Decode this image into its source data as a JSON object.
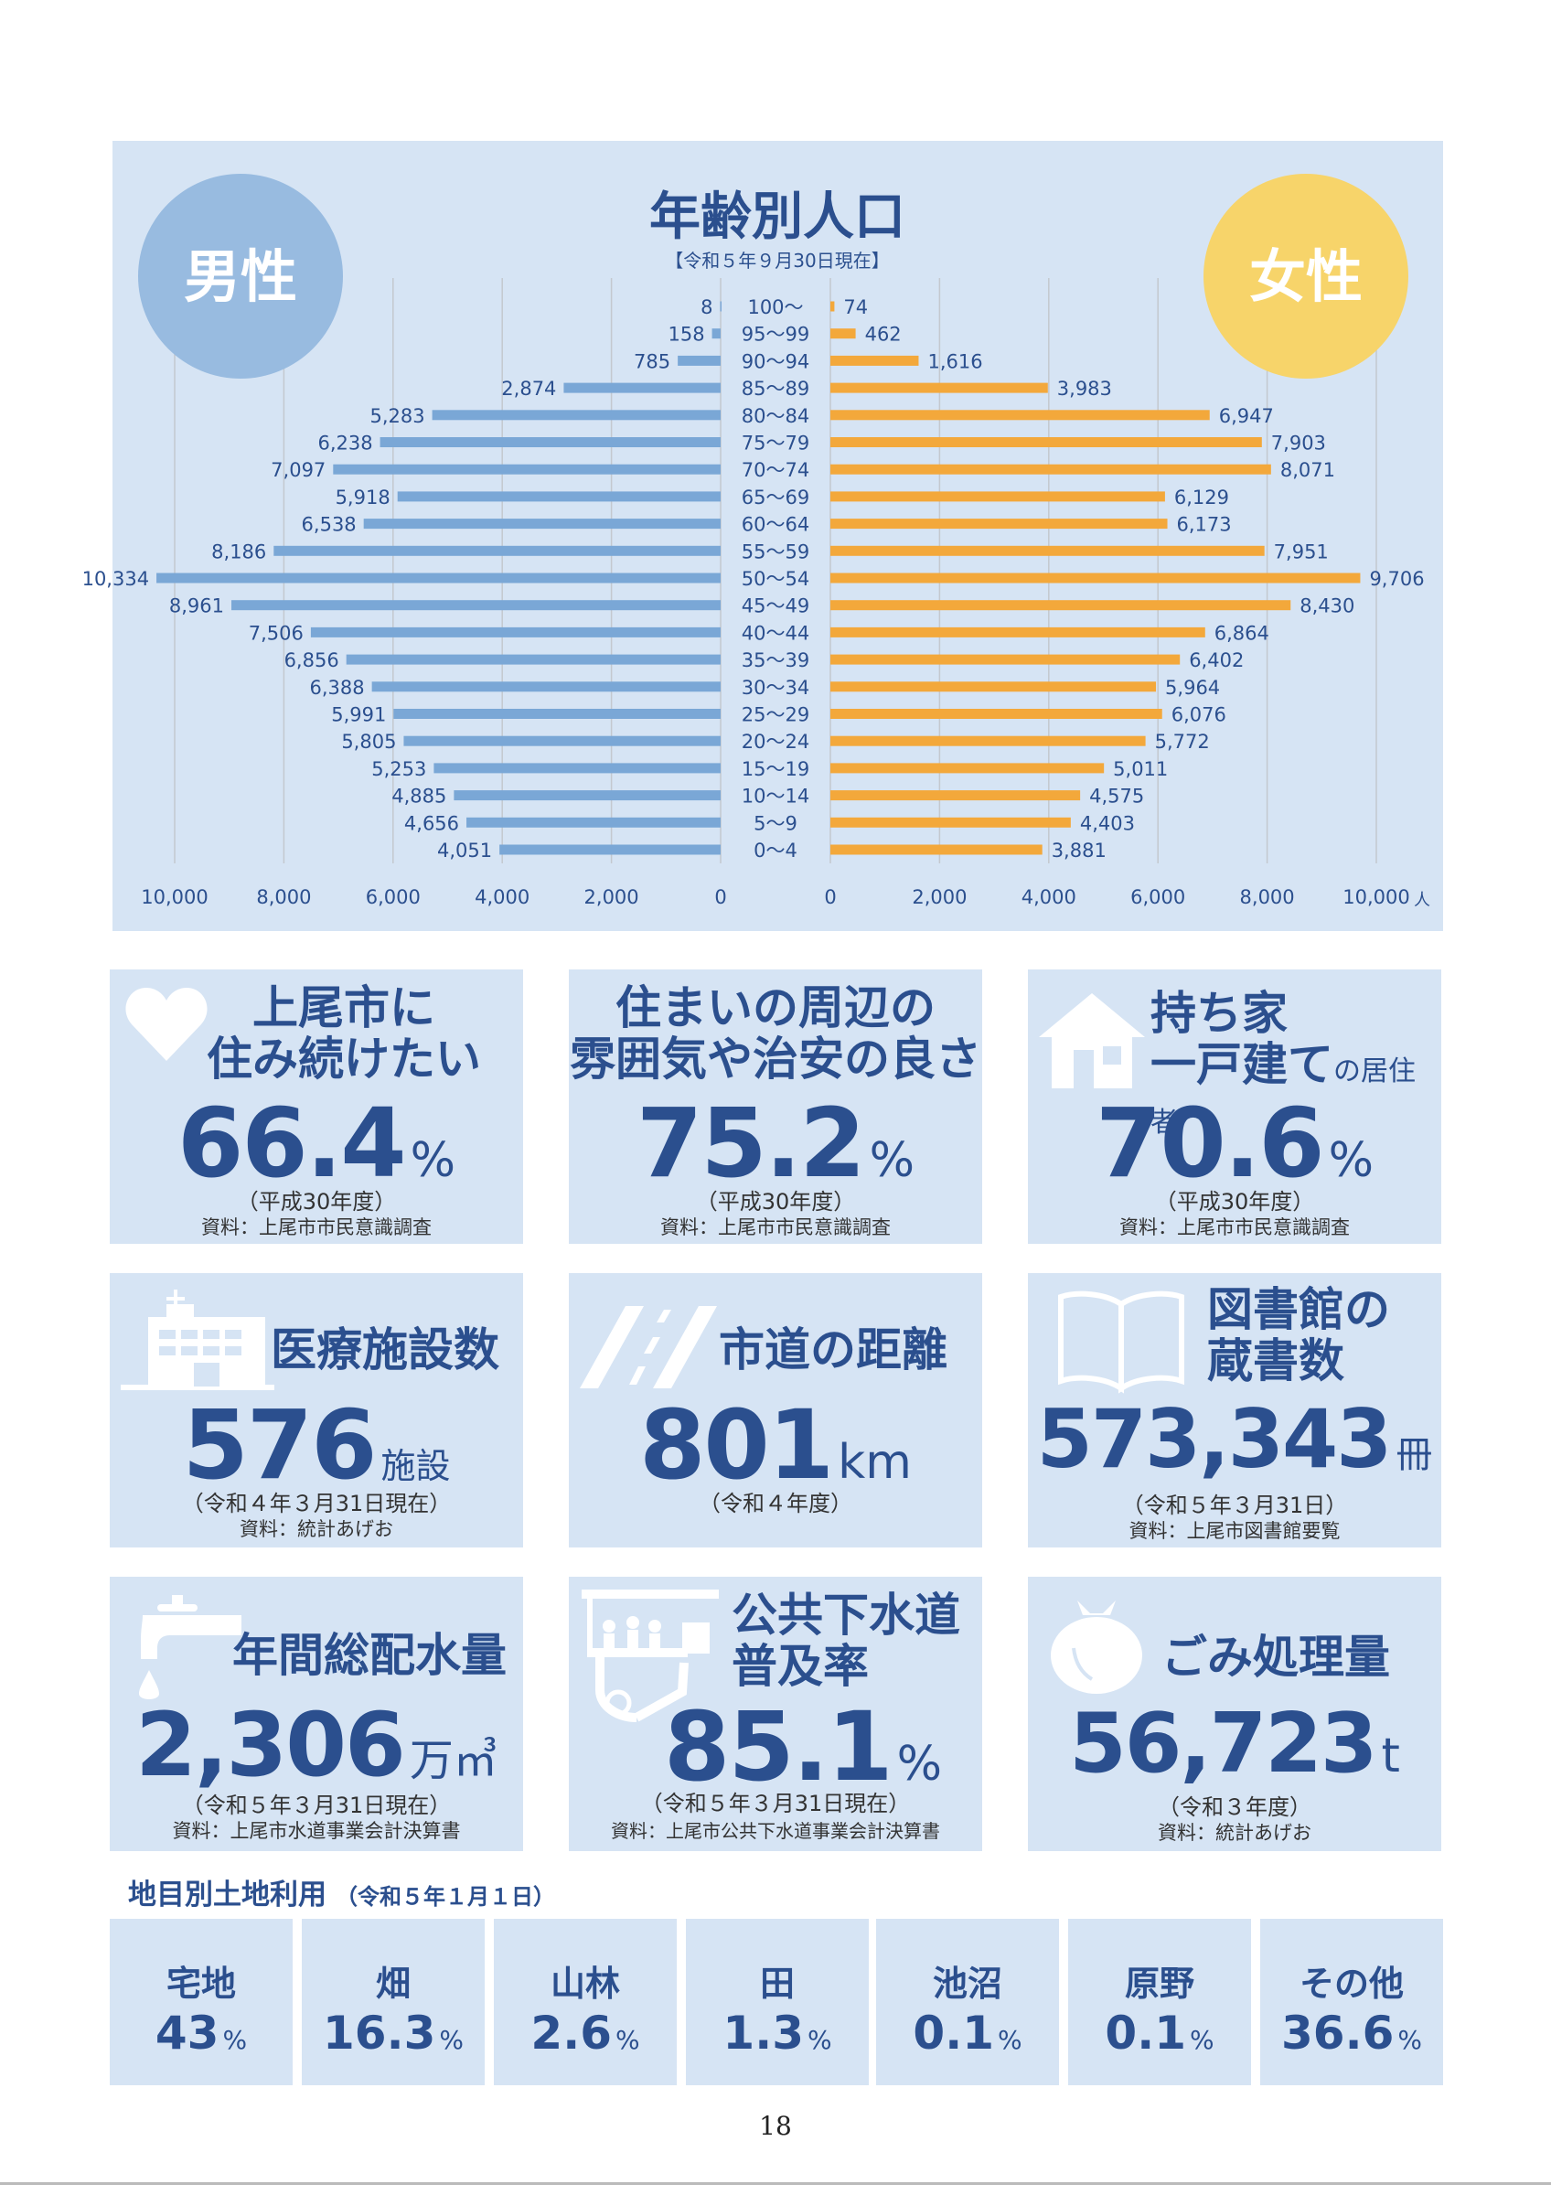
{
  "pyramid": {
    "title": "年齢別人口",
    "subtitle": "【令和５年９月30日現在】",
    "male_label": "男性",
    "female_label": "女性",
    "unit": "人",
    "colors": {
      "male_bar": "#7aa7d6",
      "female_bar": "#f3a83b",
      "male_circle": "#98bbe0",
      "female_circle": "#f7d46a"
    },
    "chart_data": {
      "type": "bar",
      "orientation": "horizontal-pyramid",
      "categories": [
        "100～",
        "95～99",
        "90～94",
        "85～89",
        "80～84",
        "75～79",
        "70～74",
        "65～69",
        "60～64",
        "55～59",
        "50～54",
        "45～49",
        "40～44",
        "35～39",
        "30～34",
        "25～29",
        "20～24",
        "15～19",
        "10～14",
        "5～9",
        "0～4"
      ],
      "series": [
        {
          "name": "男性",
          "values": [
            8,
            158,
            785,
            2874,
            5283,
            6238,
            7097,
            5918,
            6538,
            8186,
            10334,
            8961,
            7506,
            6856,
            6388,
            5991,
            5805,
            5253,
            4885,
            4656,
            4051
          ]
        },
        {
          "name": "女性",
          "values": [
            74,
            462,
            1616,
            3983,
            6947,
            7903,
            8071,
            6129,
            6173,
            7951,
            9706,
            8430,
            6864,
            6402,
            5964,
            6076,
            5772,
            5011,
            4575,
            4403,
            3881
          ]
        }
      ],
      "value_labels_male": [
        "8",
        "158",
        "785",
        "2,874",
        "5,283",
        "6,238",
        "7,097",
        "5,918",
        "6,538",
        "8,186",
        "10,334",
        "8,961",
        "7,506",
        "6,856",
        "6,388",
        "5,991",
        "5,805",
        "5,253",
        "4,885",
        "4,656",
        "4,051"
      ],
      "value_labels_female": [
        "74",
        "462",
        "1,616",
        "3,983",
        "6,947",
        "7,903",
        "8,071",
        "6,129",
        "6,173",
        "7,951",
        "9,706",
        "8,430",
        "6,864",
        "6,402",
        "5,964",
        "6,076",
        "5,772",
        "5,011",
        "4,575",
        "4,403",
        "3,881"
      ],
      "x_ticks_male": [
        "10,000",
        "8,000",
        "6,000",
        "4,000",
        "2,000",
        "0"
      ],
      "x_ticks_female": [
        "0",
        "2,000",
        "4,000",
        "6,000",
        "8,000",
        "10,000"
      ],
      "xlim": [
        0,
        10000
      ],
      "grid": true
    }
  },
  "cards": {
    "live": {
      "title_1": "上尾市に",
      "title_2": "住み続けたい",
      "value": "66.4",
      "unit": "%",
      "note": "（平成30年度）",
      "source": "資料：上尾市市民意識調査",
      "icon": "heart-icon"
    },
    "safety": {
      "title_1": "住まいの周辺の",
      "title_2": "雰囲気や治安の良さ",
      "value": "75.2",
      "unit": "%",
      "note": "（平成30年度）",
      "source": "資料：上尾市市民意識調査"
    },
    "house": {
      "title_1": "持ち家",
      "title_2": "一戸建て",
      "title_2b": "の居住者",
      "value": "70.6",
      "unit": "%",
      "note": "（平成30年度）",
      "source": "資料：上尾市市民意識調査",
      "icon": "house-icon"
    },
    "medical": {
      "title": "医療施設数",
      "value": "576",
      "unit": "施設",
      "note": "（令和４年３月31日現在）",
      "source": "資料：統計あげお",
      "icon": "hospital-icon"
    },
    "road": {
      "title": "市道の距離",
      "value": "801",
      "unit": "km",
      "note": "（令和４年度）",
      "icon": "road-icon"
    },
    "library": {
      "title_1": "図書館の",
      "title_2": "蔵書数",
      "value": "573,343",
      "unit": "冊",
      "note": "（令和５年３月31日）",
      "source": "資料：上尾市図書館要覧",
      "icon": "book-icon"
    },
    "water": {
      "title": "年間総配水量",
      "value": "2,306",
      "unit": "万㎥",
      "note": "（令和５年３月31日現在）",
      "source": "資料：上尾市水道事業会計決算書",
      "icon": "faucet-icon"
    },
    "sewer": {
      "title_1": "公共下水道",
      "title_2": "普及率",
      "value": "85.1",
      "unit": "%",
      "note": "（令和５年３月31日現在）",
      "source": "資料：上尾市公共下水道事業会計決算書",
      "icon": "sewer-icon"
    },
    "garbage": {
      "title": "ごみ処理量",
      "value": "56,723",
      "unit": "t",
      "note": "（令和３年度）",
      "source": "資料：統計あげお",
      "icon": "garbage-bag-icon"
    }
  },
  "land_use": {
    "title": "地目別土地利用",
    "date": "（令和５年１月１日）",
    "items": [
      {
        "name": "宅地",
        "value": "43",
        "unit": "%"
      },
      {
        "name": "畑",
        "value": "16.3",
        "unit": "%"
      },
      {
        "name": "山林",
        "value": "2.6",
        "unit": "%"
      },
      {
        "name": "田",
        "value": "1.3",
        "unit": "%"
      },
      {
        "name": "池沼",
        "value": "0.1",
        "unit": "%"
      },
      {
        "name": "原野",
        "value": "0.1",
        "unit": "%"
      },
      {
        "name": "その他",
        "value": "36.6",
        "unit": "%"
      }
    ]
  },
  "page_number": "18"
}
